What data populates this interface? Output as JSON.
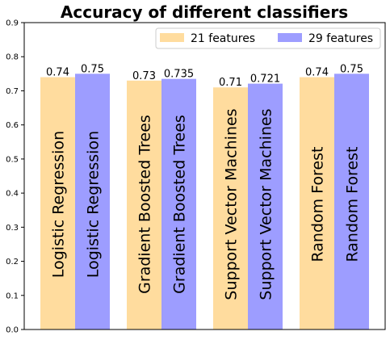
{
  "chart_data": {
    "type": "bar",
    "title": "Accuracy of different classifiers",
    "xlabel": "",
    "ylabel": "",
    "ylim": [
      0,
      0.9
    ],
    "yticks": [
      "0.0",
      "0.1",
      "0.2",
      "0.3",
      "0.4",
      "0.5",
      "0.6",
      "0.7",
      "0.8",
      "0.9"
    ],
    "categories": [
      "Logistic Regression",
      "Gradient Boosted Trees",
      "Support Vector Machines",
      "Random Forest"
    ],
    "series": [
      {
        "name": "21 features",
        "color": "#ffdc9e",
        "values": [
          0.74,
          0.73,
          0.71,
          0.74
        ],
        "labels": [
          "0.74",
          "0.73",
          "0.71",
          "0.74"
        ]
      },
      {
        "name": "29 features",
        "color": "#9d9dff",
        "values": [
          0.75,
          0.735,
          0.721,
          0.75
        ],
        "labels": [
          "0.75",
          "0.735",
          "0.721",
          "0.75"
        ]
      }
    ],
    "legend": "top-right",
    "grid": false
  }
}
